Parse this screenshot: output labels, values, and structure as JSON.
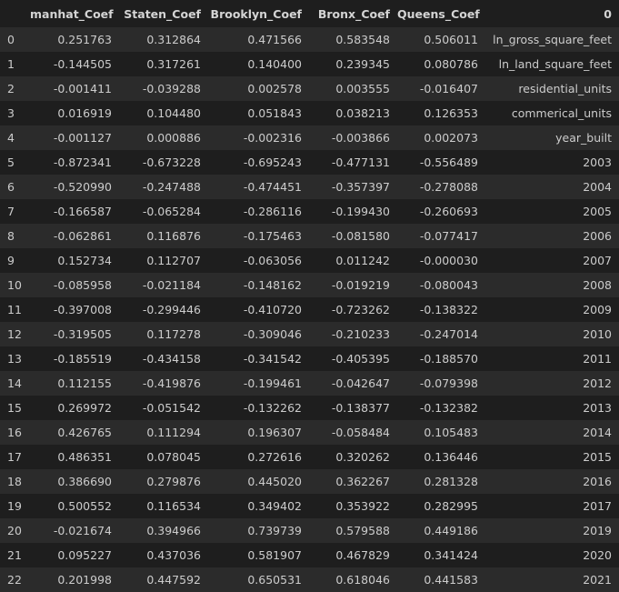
{
  "table": {
    "columns": [
      "",
      "manhat_Coef",
      "Staten_Coef",
      "Brooklyn_Coef",
      "Bronx_Coef",
      "Queens_Coef",
      "0"
    ],
    "rows": [
      [
        "0",
        "0.251763",
        "0.312864",
        "0.471566",
        "0.583548",
        "0.506011",
        "ln_gross_square_feet"
      ],
      [
        "1",
        "-0.144505",
        "0.317261",
        "0.140400",
        "0.239345",
        "0.080786",
        "ln_land_square_feet"
      ],
      [
        "2",
        "-0.001411",
        "-0.039288",
        "0.002578",
        "0.003555",
        "-0.016407",
        "residential_units"
      ],
      [
        "3",
        "0.016919",
        "0.104480",
        "0.051843",
        "0.038213",
        "0.126353",
        "commerical_units"
      ],
      [
        "4",
        "-0.001127",
        "0.000886",
        "-0.002316",
        "-0.003866",
        "0.002073",
        "year_built"
      ],
      [
        "5",
        "-0.872341",
        "-0.673228",
        "-0.695243",
        "-0.477131",
        "-0.556489",
        "2003"
      ],
      [
        "6",
        "-0.520990",
        "-0.247488",
        "-0.474451",
        "-0.357397",
        "-0.278088",
        "2004"
      ],
      [
        "7",
        "-0.166587",
        "-0.065284",
        "-0.286116",
        "-0.199430",
        "-0.260693",
        "2005"
      ],
      [
        "8",
        "-0.062861",
        "0.116876",
        "-0.175463",
        "-0.081580",
        "-0.077417",
        "2006"
      ],
      [
        "9",
        "0.152734",
        "0.112707",
        "-0.063056",
        "0.011242",
        "-0.000030",
        "2007"
      ],
      [
        "10",
        "-0.085958",
        "-0.021184",
        "-0.148162",
        "-0.019219",
        "-0.080043",
        "2008"
      ],
      [
        "11",
        "-0.397008",
        "-0.299446",
        "-0.410720",
        "-0.723262",
        "-0.138322",
        "2009"
      ],
      [
        "12",
        "-0.319505",
        "0.117278",
        "-0.309046",
        "-0.210233",
        "-0.247014",
        "2010"
      ],
      [
        "13",
        "-0.185519",
        "-0.434158",
        "-0.341542",
        "-0.405395",
        "-0.188570",
        "2011"
      ],
      [
        "14",
        "0.112155",
        "-0.419876",
        "-0.199461",
        "-0.042647",
        "-0.079398",
        "2012"
      ],
      [
        "15",
        "0.269972",
        "-0.051542",
        "-0.132262",
        "-0.138377",
        "-0.132382",
        "2013"
      ],
      [
        "16",
        "0.426765",
        "0.111294",
        "0.196307",
        "-0.058484",
        "0.105483",
        "2014"
      ],
      [
        "17",
        "0.486351",
        "0.078045",
        "0.272616",
        "0.320262",
        "0.136446",
        "2015"
      ],
      [
        "18",
        "0.386690",
        "0.279876",
        "0.445020",
        "0.362267",
        "0.281328",
        "2016"
      ],
      [
        "19",
        "0.500552",
        "0.116534",
        "0.349402",
        "0.353922",
        "0.282995",
        "2017"
      ],
      [
        "20",
        "-0.021674",
        "0.394966",
        "0.739739",
        "0.579588",
        "0.449186",
        "2019"
      ],
      [
        "21",
        "0.095227",
        "0.437036",
        "0.581907",
        "0.467829",
        "0.341424",
        "2020"
      ],
      [
        "22",
        "0.201998",
        "0.447592",
        "0.650531",
        "0.618046",
        "0.441583",
        "2021"
      ]
    ]
  },
  "colors": {
    "background": "#1e1e1e",
    "row_stripe": "#2b2b2b",
    "text": "#cccccc",
    "header_text": "#d4d4d4"
  }
}
